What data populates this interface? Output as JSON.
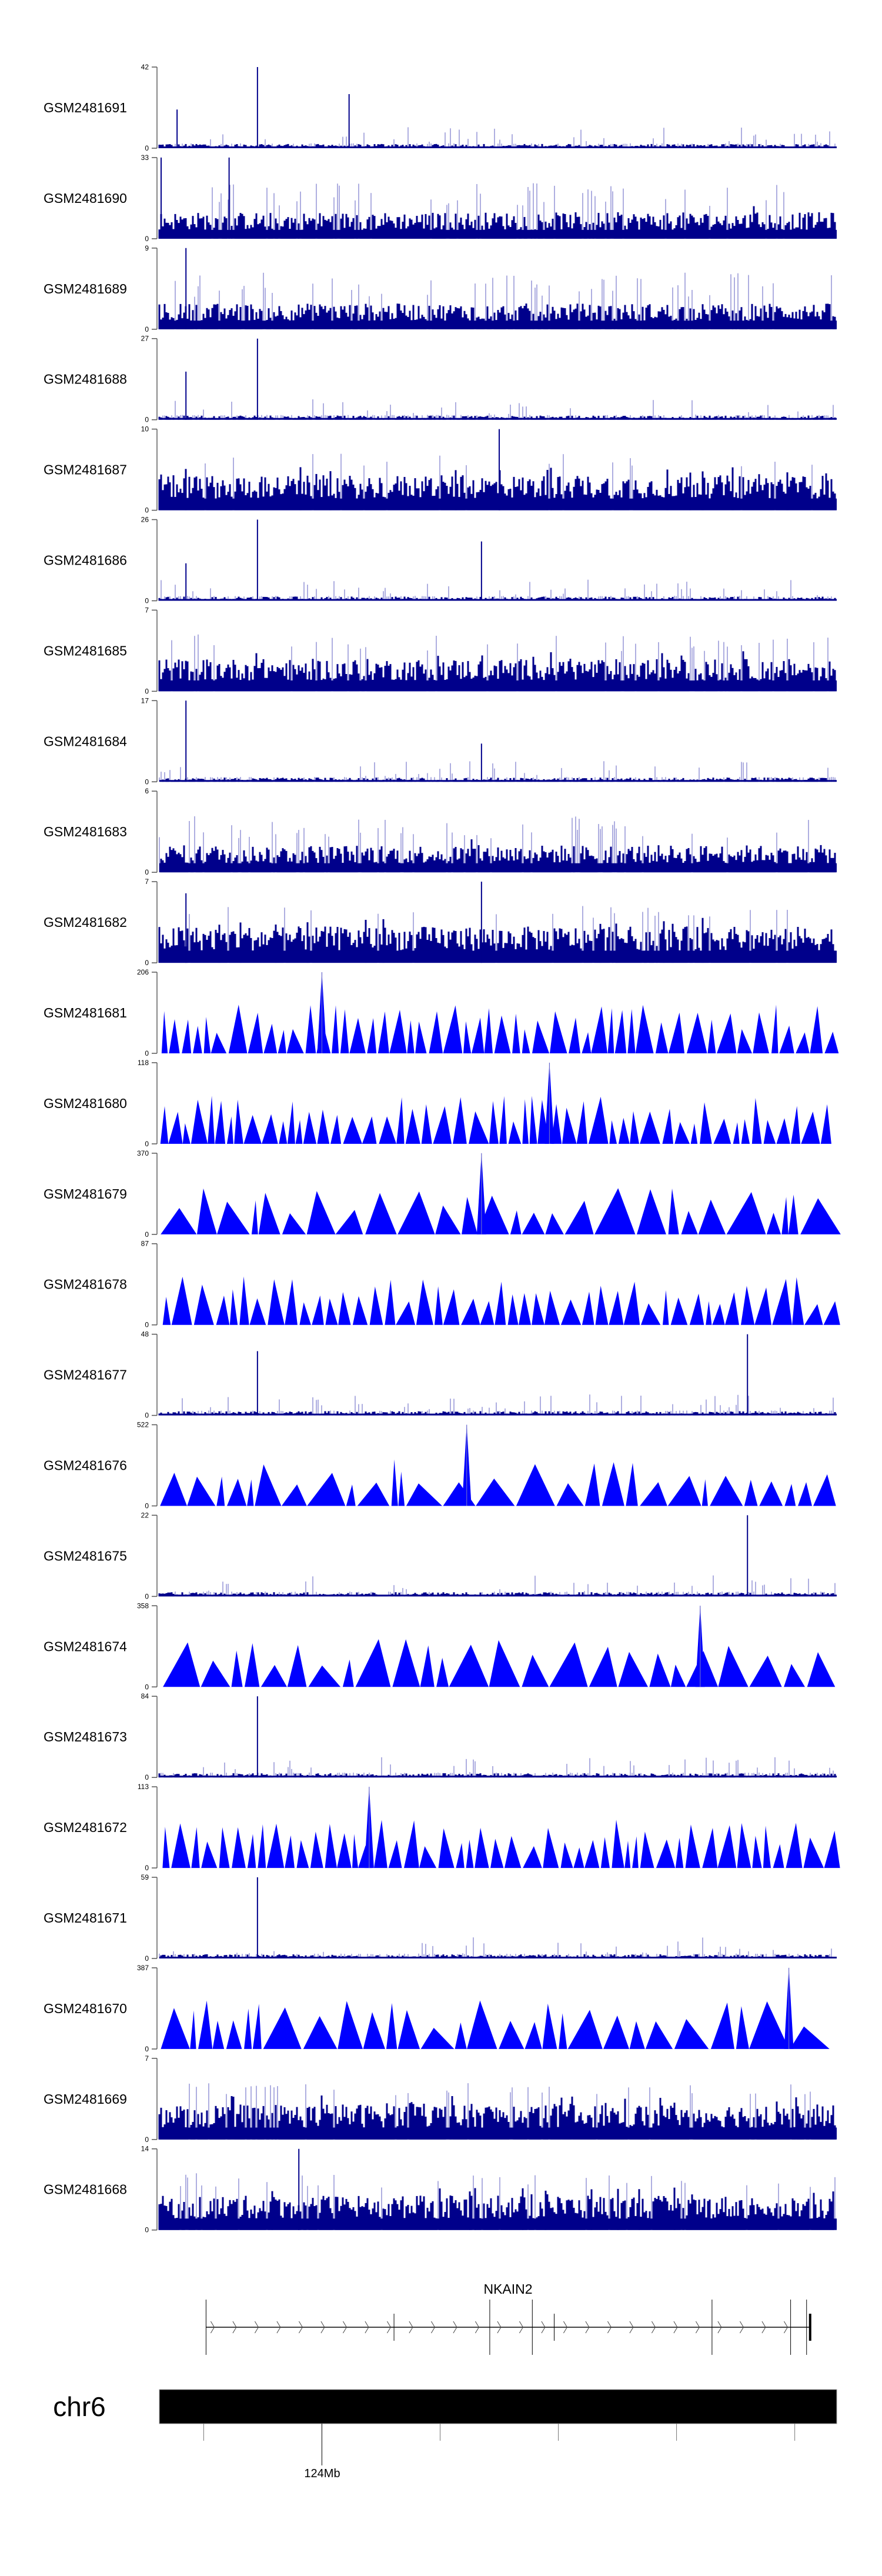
{
  "chart_data": {
    "type": "area",
    "title": "",
    "xlabel": "",
    "ylabel": "",
    "chromosome": "chr6",
    "xlim_mb": [
      123.725,
      124.871
    ],
    "axis_tick_labels": [
      "124Mb"
    ],
    "axis_ticks_mb": [
      123.8,
      124.0,
      124.2,
      124.4,
      124.6,
      124.8
    ],
    "colors": {
      "histogram": "#00008B",
      "histogram_light": "#7777CC",
      "triangle": "#0000FF",
      "gene": "#000000",
      "axis": "#888888"
    },
    "tracks": [
      {
        "name": "GSM2481691",
        "ylim": [
          0,
          42
        ],
        "style": "sparse",
        "peaks_mb": [
          [
            123.891,
            42
          ],
          [
            124.046,
            28
          ],
          [
            123.755,
            20
          ]
        ]
      },
      {
        "name": "GSM2481690",
        "ylim": [
          0,
          33
        ],
        "style": "dense",
        "peaks_mb": [
          [
            123.728,
            33
          ],
          [
            123.843,
            33
          ]
        ]
      },
      {
        "name": "GSM2481689",
        "ylim": [
          0,
          9
        ],
        "style": "dense",
        "peaks_mb": [
          [
            123.77,
            9
          ]
        ]
      },
      {
        "name": "GSM2481688",
        "ylim": [
          0,
          27
        ],
        "style": "sparse",
        "peaks_mb": [
          [
            123.891,
            27
          ],
          [
            123.77,
            16
          ]
        ]
      },
      {
        "name": "GSM2481687",
        "ylim": [
          0,
          10
        ],
        "style": "dense",
        "peaks_mb": [
          [
            124.3,
            10
          ]
        ]
      },
      {
        "name": "GSM2481686",
        "ylim": [
          0,
          26
        ],
        "style": "sparse",
        "peaks_mb": [
          [
            123.891,
            26
          ],
          [
            124.27,
            19
          ],
          [
            123.77,
            12
          ]
        ]
      },
      {
        "name": "GSM2481685",
        "ylim": [
          0,
          7
        ],
        "style": "dense",
        "peaks_mb": []
      },
      {
        "name": "GSM2481684",
        "ylim": [
          0,
          17
        ],
        "style": "sparse",
        "peaks_mb": [
          [
            123.77,
            17
          ],
          [
            124.27,
            8
          ]
        ]
      },
      {
        "name": "GSM2481683",
        "ylim": [
          0,
          6
        ],
        "style": "dense",
        "peaks_mb": []
      },
      {
        "name": "GSM2481682",
        "ylim": [
          0,
          7
        ],
        "style": "dense",
        "peaks_mb": [
          [
            124.27,
            7
          ],
          [
            123.77,
            6
          ]
        ]
      },
      {
        "name": "GSM2481681",
        "ylim": [
          0,
          206
        ],
        "style": "triangles",
        "peaks_mb": [
          [
            124.0,
            206
          ]
        ]
      },
      {
        "name": "GSM2481680",
        "ylim": [
          0,
          118
        ],
        "style": "triangles",
        "peaks_mb": [
          [
            124.385,
            118
          ]
        ]
      },
      {
        "name": "GSM2481679",
        "ylim": [
          0,
          370
        ],
        "style": "triangles",
        "peaks_mb": [
          [
            124.27,
            370
          ]
        ]
      },
      {
        "name": "GSM2481678",
        "ylim": [
          0,
          87
        ],
        "style": "triangles",
        "peaks_mb": []
      },
      {
        "name": "GSM2481677",
        "ylim": [
          0,
          48
        ],
        "style": "sparse",
        "peaks_mb": [
          [
            124.72,
            48
          ],
          [
            123.891,
            38
          ]
        ]
      },
      {
        "name": "GSM2481676",
        "ylim": [
          0,
          522
        ],
        "style": "triangles",
        "peaks_mb": [
          [
            124.245,
            522
          ]
        ]
      },
      {
        "name": "GSM2481675",
        "ylim": [
          0,
          22
        ],
        "style": "sparse",
        "peaks_mb": [
          [
            124.72,
            22
          ]
        ]
      },
      {
        "name": "GSM2481674",
        "ylim": [
          0,
          358
        ],
        "style": "triangles",
        "peaks_mb": [
          [
            124.64,
            358
          ]
        ]
      },
      {
        "name": "GSM2481673",
        "ylim": [
          0,
          84
        ],
        "style": "sparse",
        "peaks_mb": [
          [
            123.891,
            84
          ]
        ]
      },
      {
        "name": "GSM2481672",
        "ylim": [
          0,
          113
        ],
        "style": "triangles",
        "peaks_mb": [
          [
            124.08,
            113
          ]
        ]
      },
      {
        "name": "GSM2481671",
        "ylim": [
          0,
          59
        ],
        "style": "sparse",
        "peaks_mb": [
          [
            123.891,
            59
          ]
        ]
      },
      {
        "name": "GSM2481670",
        "ylim": [
          0,
          387
        ],
        "style": "triangles",
        "peaks_mb": [
          [
            124.79,
            387
          ]
        ]
      },
      {
        "name": "GSM2481669",
        "ylim": [
          0,
          7
        ],
        "style": "dense",
        "peaks_mb": []
      },
      {
        "name": "GSM2481668",
        "ylim": [
          0,
          14
        ],
        "style": "dense",
        "peaks_mb": [
          [
            123.961,
            14
          ]
        ]
      }
    ],
    "gene": {
      "name": "NKAIN2",
      "strand": "+",
      "start_mb": 123.804,
      "end_mb": 124.826,
      "exons_mb": [
        123.804,
        124.122,
        124.284,
        124.356,
        124.393,
        124.66,
        124.793,
        124.82,
        124.826
      ]
    }
  }
}
